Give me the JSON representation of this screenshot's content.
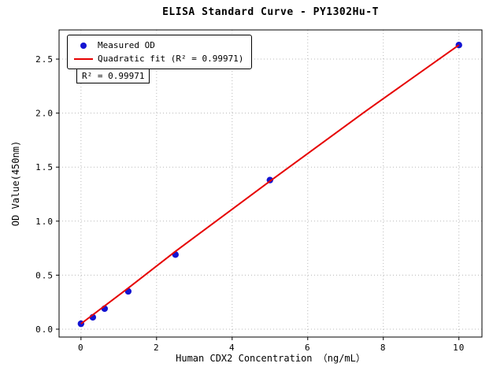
{
  "colors": {
    "scatter": "#1414d2",
    "fit_line": "#e60000",
    "grid": "#b8b8b8",
    "axes": "#000000",
    "background": "#ffffff"
  },
  "chart_data": {
    "type": "scatter",
    "title": "ELISA Standard Curve - PY1302Hu-T",
    "xlabel": "Human CDX2 Concentration （ng/mL）",
    "ylabel": "OD Value(450nm)",
    "xlim": [
      -0.58,
      10.61
    ],
    "ylim": [
      -0.073,
      2.77
    ],
    "xticks": [
      0,
      2,
      4,
      6,
      8,
      10
    ],
    "xtick_labels": [
      "0",
      "2",
      "4",
      "6",
      "8",
      "10"
    ],
    "yticks": [
      0.0,
      0.5,
      1.0,
      1.5,
      2.0,
      2.5
    ],
    "ytick_labels": [
      "0.0",
      "0.5",
      "1.0",
      "1.5",
      "2.0",
      "2.5"
    ],
    "grid": true,
    "grid_style": "dotted",
    "legend_position": "upper left",
    "annotation": "R² = 0.99971",
    "series": [
      {
        "name": "Measured OD",
        "type": "scatter",
        "color": "#1414d2",
        "x": [
          0,
          0.313,
          0.625,
          1.25,
          2.5,
          5,
          10
        ],
        "y": [
          0.05,
          0.11,
          0.19,
          0.35,
          0.69,
          1.38,
          2.63
        ]
      },
      {
        "name": "Quadratic fit (R² = 0.99971)",
        "type": "line",
        "color": "#e60000",
        "x": [
          0,
          1.25,
          2.5,
          5,
          7.5,
          10
        ],
        "y": [
          0.05,
          0.38,
          0.72,
          1.37,
          2.01,
          2.63
        ]
      }
    ]
  }
}
